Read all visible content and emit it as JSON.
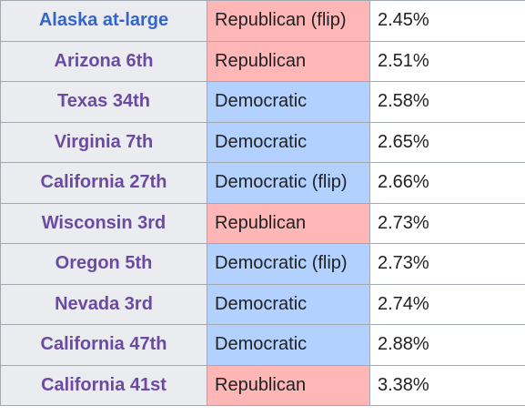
{
  "table": {
    "rows": [
      [
        "Alaska at-large",
        "Republican (flip)",
        "2.45%"
      ],
      [
        "Arizona 6th",
        "Republican",
        "2.51%"
      ],
      [
        "Texas 34th",
        "Democratic",
        "2.58%"
      ],
      [
        "Virginia 7th",
        "Democratic",
        "2.65%"
      ],
      [
        "California 27th",
        "Democratic (flip)",
        "2.66%"
      ],
      [
        "Wisconsin 3rd",
        "Republican",
        "2.73%"
      ],
      [
        "Oregon 5th",
        "Democratic (flip)",
        "2.73%"
      ],
      [
        "Nevada 3rd",
        "Democratic",
        "2.74%"
      ],
      [
        "California 47th",
        "Democratic",
        "2.88%"
      ],
      [
        "California 41st",
        "Republican",
        "3.38%"
      ]
    ]
  }
}
